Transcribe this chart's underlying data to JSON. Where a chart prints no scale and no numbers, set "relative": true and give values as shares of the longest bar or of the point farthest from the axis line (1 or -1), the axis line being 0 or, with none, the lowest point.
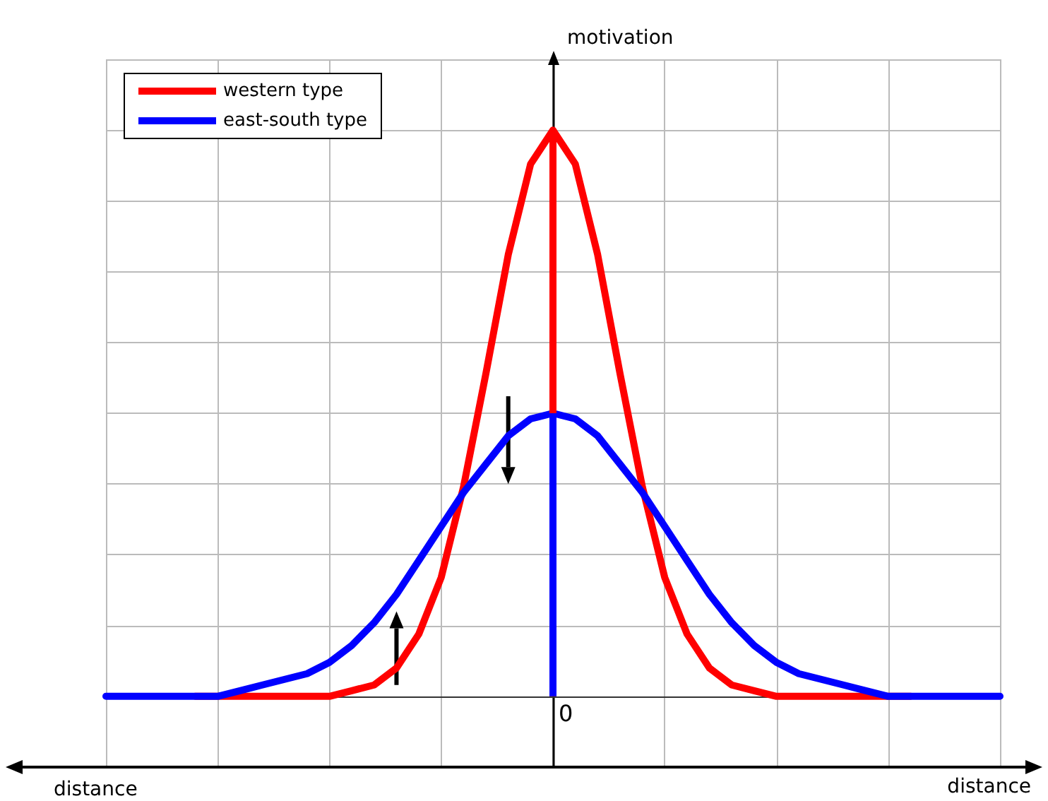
{
  "chart_data": {
    "type": "line",
    "relative": true,
    "xlabel": "distance",
    "ylabel": "motivation",
    "categories": [
      null,
      null,
      null,
      null,
      null,
      null,
      null,
      null,
      null,
      null,
      null,
      null,
      null,
      null,
      null,
      null,
      null,
      null,
      null,
      null,
      null,
      null,
      null,
      null,
      null,
      null,
      null,
      null,
      null,
      null,
      null,
      null,
      null,
      null,
      null,
      null,
      null,
      null,
      null,
      null,
      null
    ],
    "series": [
      {
        "name": "western type",
        "color": "#ff0000",
        "values": [
          null,
          null,
          null,
          null,
          0,
          0,
          0,
          0,
          0,
          0,
          0,
          0.01,
          0.02,
          0.05,
          0.11,
          0.21,
          0.37,
          0.57,
          0.78,
          0.94,
          1,
          0.94,
          0.78,
          0.57,
          0.37,
          0.21,
          0.11,
          0.05,
          0.02,
          0.01,
          0,
          0,
          0,
          0,
          0,
          0,
          0,
          null,
          null,
          null,
          null
        ]
      },
      {
        "name": "east-south type",
        "color": "#0000ff",
        "values": [
          0,
          0,
          0,
          0,
          0,
          0,
          0.01,
          0.02,
          0.03,
          0.04,
          0.06,
          0.09,
          0.13,
          0.18,
          0.24,
          0.3,
          0.36,
          0.41,
          0.46,
          0.49,
          0.5,
          0.49,
          0.46,
          0.41,
          0.36,
          0.3,
          0.24,
          0.18,
          0.13,
          0.09,
          0.06,
          0.04,
          0.03,
          0.02,
          0.01,
          0,
          0,
          0,
          0,
          0,
          0
        ]
      }
    ],
    "annotations": [
      "0"
    ],
    "grid": true,
    "legend": "top left",
    "marker": "none",
    "line_style": "solid"
  }
}
